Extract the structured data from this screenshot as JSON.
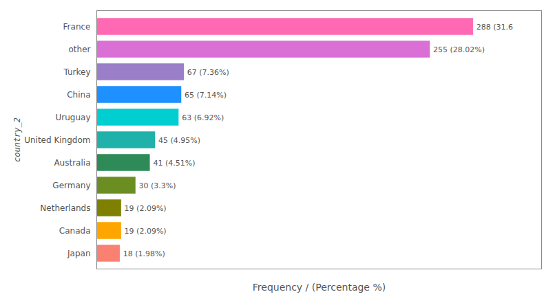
{
  "chart_data": {
    "type": "bar",
    "orientation": "horizontal",
    "categories": [
      "France",
      "other",
      "Turkey",
      "China",
      "Uruguay",
      "United Kingdom",
      "Australia",
      "Germany",
      "Netherlands",
      "Canada",
      "Japan"
    ],
    "values": [
      288,
      255,
      67,
      65,
      63,
      45,
      41,
      30,
      19,
      19,
      18
    ],
    "value_labels": [
      "288 (31.6",
      "255 (28.02%)",
      "67 (7.36%)",
      "65 (7.14%)",
      "63 (6.92%)",
      "45 (4.95%)",
      "41 (4.51%)",
      "30 (3.3%)",
      "19 (2.09%)",
      "19 (2.09%)",
      "18 (1.98%)"
    ],
    "colors": [
      "#FF69B4",
      "#DA70D6",
      "#9B7EC8",
      "#1E90FF",
      "#00CED1",
      "#20B2AA",
      "#2E8B57",
      "#6B8E23",
      "#808000",
      "#FFA500",
      "#FA8072"
    ],
    "xlabel": "Frequency / (Percentage %)",
    "ylabel": "country_2",
    "xlim": [
      0,
      340
    ],
    "tick_labels": "y",
    "data_labels": true,
    "grid": false
  }
}
